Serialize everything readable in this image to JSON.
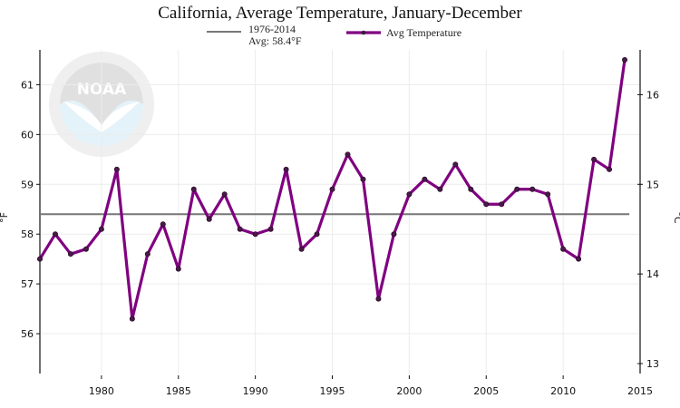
{
  "chart_data": {
    "type": "line",
    "title": "California, Average Temperature, January-December",
    "xlabel": "",
    "ylabel": "°F",
    "ylabel_right": "°C",
    "xlim": [
      1976,
      2015
    ],
    "ylim": [
      55.2,
      61.7
    ],
    "ylim_right_celsius": [
      12.9,
      16.5
    ],
    "x_ticks": [
      1980,
      1985,
      1990,
      1995,
      2000,
      2005,
      2010,
      2015
    ],
    "y_ticks": [
      56,
      57,
      58,
      59,
      60,
      61
    ],
    "y_ticks_right": [
      13,
      14,
      15,
      16
    ],
    "grid": true,
    "legend_position": "top-center",
    "reference_line": {
      "label_line1": "1976-2014",
      "label_line2": "Avg: 58.4°F",
      "value": 58.4,
      "color": "#777777"
    },
    "series": [
      {
        "name": "Avg Temperature",
        "color": "#800080",
        "x": [
          1976,
          1977,
          1978,
          1979,
          1980,
          1981,
          1982,
          1983,
          1984,
          1985,
          1986,
          1987,
          1988,
          1989,
          1990,
          1991,
          1992,
          1993,
          1994,
          1995,
          1996,
          1997,
          1998,
          1999,
          2000,
          2001,
          2002,
          2003,
          2004,
          2005,
          2006,
          2007,
          2008,
          2009,
          2010,
          2011,
          2012,
          2013,
          2014
        ],
        "values": [
          57.5,
          58.0,
          57.6,
          57.7,
          58.1,
          59.3,
          56.3,
          57.6,
          58.2,
          57.3,
          58.9,
          58.3,
          58.8,
          58.1,
          58.0,
          58.1,
          59.3,
          57.7,
          58.0,
          58.9,
          59.6,
          59.1,
          56.7,
          58.0,
          58.8,
          59.1,
          58.9,
          59.4,
          58.9,
          58.6,
          58.6,
          58.9,
          58.9,
          58.8,
          57.7,
          57.5,
          59.5,
          59.3,
          61.5
        ]
      }
    ]
  },
  "watermark": {
    "text": "NOAA",
    "ring_text": "NATIONAL OCEANIC AND ATMOSPHERIC ADMINISTRATION · U.S. DEPARTMENT OF COMMERCE"
  }
}
